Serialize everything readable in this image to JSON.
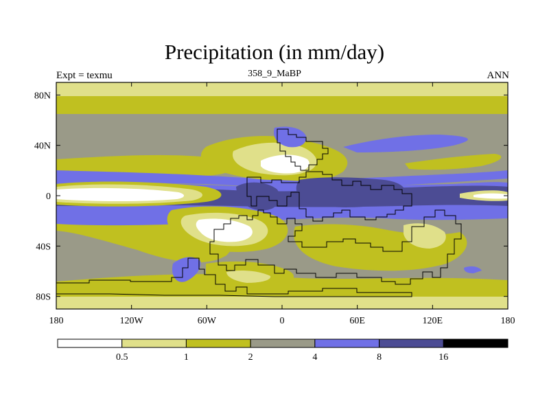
{
  "chart_data": {
    "type": "heatmap",
    "title": "Precipitation (in mm/day)",
    "left_label": "Expt = texmu",
    "center_label": "358_9_MaBP",
    "right_label": "ANN",
    "x_range": [
      -180,
      180
    ],
    "y_range": [
      -90,
      90
    ],
    "x_ticks": [
      {
        "value": -180,
        "label": "180"
      },
      {
        "value": -120,
        "label": "120W"
      },
      {
        "value": -60,
        "label": "60W"
      },
      {
        "value": 0,
        "label": "0"
      },
      {
        "value": 60,
        "label": "60E"
      },
      {
        "value": 120,
        "label": "120E"
      },
      {
        "value": 180,
        "label": "180"
      }
    ],
    "y_ticks": [
      {
        "value": 80,
        "label": "80N"
      },
      {
        "value": 40,
        "label": "40N"
      },
      {
        "value": 0,
        "label": "0"
      },
      {
        "value": -40,
        "label": "40S"
      },
      {
        "value": -80,
        "label": "80S"
      }
    ],
    "levels": [
      0.5,
      1,
      2,
      4,
      8,
      16
    ],
    "level_labels": [
      "0.5",
      "1",
      "2",
      "4",
      "8",
      "16"
    ],
    "colors": [
      "#ffffff",
      "#e0e08a",
      "#c0c020",
      "#9a9a88",
      "#7070e6",
      "#4c4c94",
      "#000000"
    ]
  }
}
